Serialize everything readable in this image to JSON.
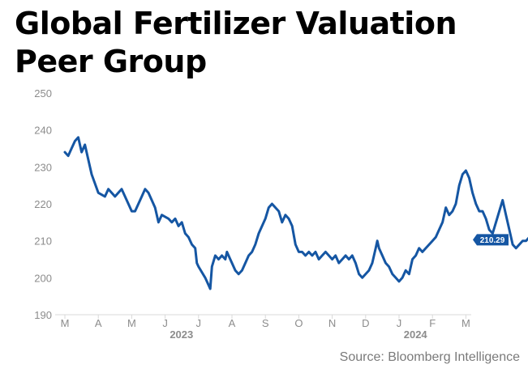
{
  "title": "Global Fertilizer Valuation Peer Group",
  "source": "Source: Bloomberg Intelligence",
  "colors": {
    "line": "#1556a3",
    "label_bg": "#1556a3",
    "axis": "#d9d9d9",
    "text": "#8c8c8c"
  },
  "chart_data": {
    "type": "line",
    "title": "Global Fertilizer Valuation Peer Group",
    "xlabel": "",
    "ylabel": "",
    "ylim": [
      190,
      250
    ],
    "yticks": [
      190,
      200,
      210,
      220,
      230,
      240,
      250
    ],
    "x_tick_labels": [
      "M",
      "A",
      "M",
      "J",
      "J",
      "A",
      "S",
      "O",
      "N",
      "D",
      "J",
      "F",
      "M"
    ],
    "year_labels": [
      {
        "label": "2023",
        "month_index": 4
      },
      {
        "label": "2024",
        "month_index": 11
      }
    ],
    "grid": false,
    "last_value_label": "210.29",
    "series": [
      {
        "name": "",
        "points": [
          [
            0,
            234
          ],
          [
            0.1,
            233
          ],
          [
            0.2,
            235
          ],
          [
            0.3,
            237
          ],
          [
            0.4,
            238
          ],
          [
            0.5,
            234
          ],
          [
            0.6,
            236
          ],
          [
            0.8,
            228
          ],
          [
            1.0,
            223
          ],
          [
            1.2,
            222
          ],
          [
            1.3,
            224
          ],
          [
            1.5,
            222
          ],
          [
            1.6,
            223
          ],
          [
            1.7,
            224
          ],
          [
            1.9,
            220
          ],
          [
            2.0,
            218
          ],
          [
            2.1,
            218
          ],
          [
            2.3,
            222
          ],
          [
            2.4,
            224
          ],
          [
            2.5,
            223
          ],
          [
            2.6,
            221
          ],
          [
            2.7,
            219
          ],
          [
            2.8,
            215
          ],
          [
            2.9,
            217
          ],
          [
            3.1,
            216
          ],
          [
            3.2,
            215
          ],
          [
            3.3,
            216
          ],
          [
            3.4,
            214
          ],
          [
            3.5,
            215
          ],
          [
            3.6,
            212
          ],
          [
            3.7,
            211
          ],
          [
            3.8,
            209
          ],
          [
            3.9,
            208
          ],
          [
            3.95,
            204
          ],
          [
            4.0,
            203
          ],
          [
            4.2,
            200
          ],
          [
            4.3,
            198
          ],
          [
            4.35,
            197
          ],
          [
            4.4,
            203
          ],
          [
            4.5,
            206
          ],
          [
            4.6,
            205
          ],
          [
            4.7,
            206
          ],
          [
            4.8,
            205
          ],
          [
            4.85,
            207
          ],
          [
            5.0,
            204
          ],
          [
            5.1,
            202
          ],
          [
            5.2,
            201
          ],
          [
            5.3,
            202
          ],
          [
            5.4,
            204
          ],
          [
            5.5,
            206
          ],
          [
            5.6,
            207
          ],
          [
            5.7,
            209
          ],
          [
            5.8,
            212
          ],
          [
            5.9,
            214
          ],
          [
            6.0,
            216
          ],
          [
            6.1,
            219
          ],
          [
            6.2,
            220
          ],
          [
            6.3,
            219
          ],
          [
            6.4,
            218
          ],
          [
            6.5,
            215
          ],
          [
            6.6,
            217
          ],
          [
            6.7,
            216
          ],
          [
            6.8,
            214
          ],
          [
            6.9,
            209
          ],
          [
            7.0,
            207
          ],
          [
            7.1,
            207
          ],
          [
            7.2,
            206
          ],
          [
            7.3,
            207
          ],
          [
            7.4,
            206
          ],
          [
            7.5,
            207
          ],
          [
            7.6,
            205
          ],
          [
            7.7,
            206
          ],
          [
            7.8,
            207
          ],
          [
            7.9,
            206
          ],
          [
            8.0,
            205
          ],
          [
            8.1,
            206
          ],
          [
            8.2,
            204
          ],
          [
            8.3,
            205
          ],
          [
            8.4,
            206
          ],
          [
            8.5,
            205
          ],
          [
            8.6,
            206
          ],
          [
            8.7,
            204
          ],
          [
            8.8,
            201
          ],
          [
            8.9,
            200
          ],
          [
            9.0,
            201
          ],
          [
            9.1,
            202
          ],
          [
            9.2,
            204
          ],
          [
            9.3,
            208
          ],
          [
            9.35,
            210
          ],
          [
            9.4,
            208
          ],
          [
            9.5,
            206
          ],
          [
            9.6,
            204
          ],
          [
            9.7,
            203
          ],
          [
            9.8,
            201
          ],
          [
            9.9,
            200
          ],
          [
            10.0,
            199
          ],
          [
            10.1,
            200
          ],
          [
            10.2,
            202
          ],
          [
            10.3,
            201
          ],
          [
            10.4,
            205
          ],
          [
            10.5,
            206
          ],
          [
            10.6,
            208
          ],
          [
            10.7,
            207
          ],
          [
            10.8,
            208
          ],
          [
            10.9,
            209
          ],
          [
            11.0,
            210
          ],
          [
            11.1,
            211
          ],
          [
            11.2,
            213
          ],
          [
            11.3,
            215
          ],
          [
            11.4,
            219
          ],
          [
            11.5,
            217
          ],
          [
            11.6,
            218
          ],
          [
            11.7,
            220
          ],
          [
            11.8,
            225
          ],
          [
            11.9,
            228
          ],
          [
            12.0,
            229
          ],
          [
            12.1,
            227
          ],
          [
            12.2,
            223
          ],
          [
            12.3,
            220
          ],
          [
            12.4,
            218
          ],
          [
            12.5,
            218
          ],
          [
            12.6,
            216
          ],
          [
            12.7,
            213
          ],
          [
            12.8,
            212
          ],
          [
            12.9,
            215
          ],
          [
            13.0,
            218
          ],
          [
            13.1,
            221
          ],
          [
            13.2,
            217
          ],
          [
            13.3,
            213
          ],
          [
            13.4,
            209
          ],
          [
            13.5,
            208
          ],
          [
            13.6,
            209
          ],
          [
            13.7,
            210
          ],
          [
            13.8,
            210
          ],
          [
            13.9,
            211
          ],
          [
            14.0,
            212
          ],
          [
            14.1,
            212
          ],
          [
            14.2,
            213
          ],
          [
            14.3,
            212
          ],
          [
            14.4,
            211
          ],
          [
            14.5,
            213
          ],
          [
            14.6,
            214
          ],
          [
            14.7,
            214
          ],
          [
            14.8,
            213
          ],
          [
            14.9,
            211
          ],
          [
            15.0,
            212
          ],
          [
            15.05,
            210.29
          ]
        ]
      }
    ]
  }
}
